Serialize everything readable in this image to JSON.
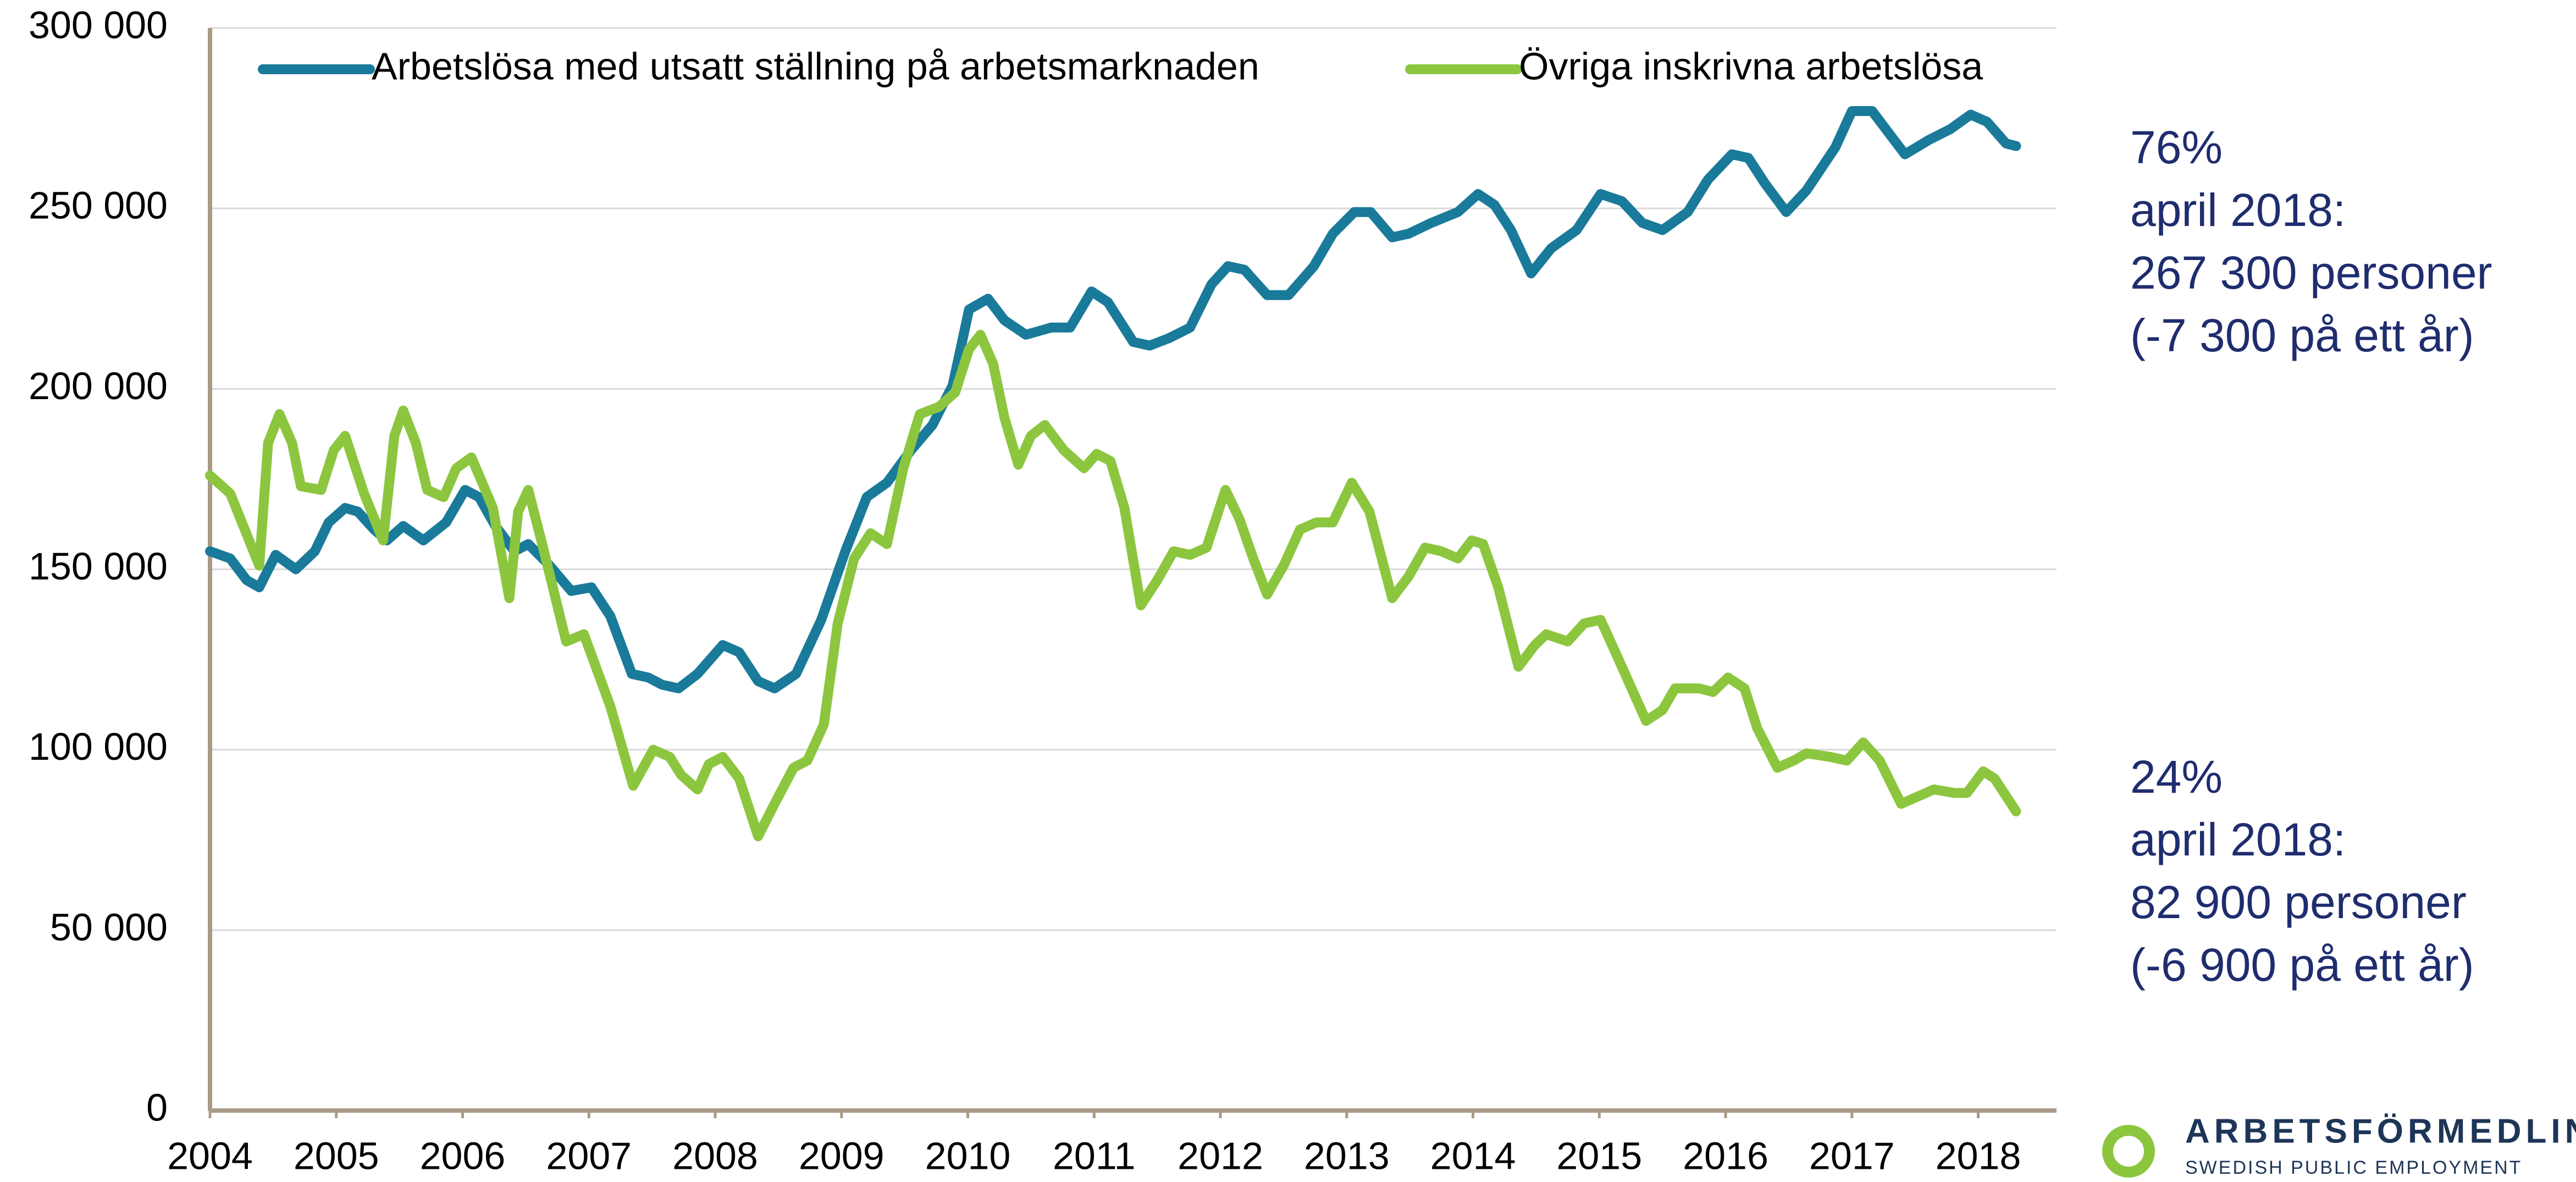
{
  "chart_data": {
    "type": "line",
    "xlim": [
      2004,
      2018.62
    ],
    "xticks": [
      2004,
      2005,
      2006,
      2007,
      2008,
      2009,
      2010,
      2011,
      2012,
      2013,
      2014,
      2015,
      2016,
      2017,
      2018
    ],
    "ylim": [
      0,
      300000
    ],
    "yticks": [
      0,
      {
        "value": 50000,
        "label": "50 000"
      },
      {
        "value": 100000,
        "label": "100 000"
      },
      {
        "value": 150000,
        "label": "150 000"
      },
      {
        "value": 200000,
        "label": "200 000"
      },
      {
        "value": 250000,
        "label": "250 000"
      },
      {
        "value": 300000,
        "label": "300 000"
      }
    ],
    "grid": true,
    "legend": "top",
    "series": [
      {
        "name": "Arbetslösa med utsatt ställning på arbetsmarknaden",
        "color": "#1a7a9a",
        "x": [
          2004.0,
          2004.16,
          2004.29,
          2004.39,
          2004.52,
          2004.68,
          2004.83,
          2004.94,
          2005.07,
          2005.17,
          2005.3,
          2005.4,
          2005.53,
          2005.69,
          2005.87,
          2006.02,
          2006.13,
          2006.26,
          2006.41,
          2006.52,
          2006.69,
          2006.86,
          2007.02,
          2007.17,
          2007.34,
          2007.47,
          2007.58,
          2007.71,
          2007.86,
          2008.06,
          2008.19,
          2008.34,
          2008.47,
          2008.64,
          2008.84,
          2009.03,
          2009.2,
          2009.36,
          2009.55,
          2009.72,
          2009.88,
          2010.01,
          2010.16,
          2010.29,
          2010.46,
          2010.66,
          2010.81,
          2010.98,
          2011.11,
          2011.31,
          2011.44,
          2011.59,
          2011.76,
          2011.93,
          2012.06,
          2012.19,
          2012.37,
          2012.54,
          2012.74,
          2012.89,
          2013.06,
          2013.19,
          2013.36,
          2013.49,
          2013.67,
          2013.88,
          2014.04,
          2014.17,
          2014.3,
          2014.46,
          2014.62,
          2014.82,
          2015.01,
          2015.18,
          2015.34,
          2015.5,
          2015.7,
          2015.86,
          2016.05,
          2016.18,
          2016.31,
          2016.48,
          2016.64,
          2016.87,
          2017.0,
          2017.16,
          2017.29,
          2017.42,
          2017.61,
          2017.78,
          2017.94,
          2018.07,
          2018.22,
          2018.3
        ],
        "values": [
          155000,
          153000,
          147000,
          145000,
          154000,
          150000,
          155000,
          163000,
          167000,
          166000,
          161000,
          158000,
          162000,
          158000,
          163000,
          172000,
          170000,
          162000,
          155000,
          157000,
          151000,
          144000,
          145000,
          137000,
          121000,
          120000,
          118000,
          117000,
          121000,
          129000,
          127000,
          119000,
          117000,
          121000,
          136000,
          155000,
          170000,
          174000,
          183000,
          190000,
          201000,
          222000,
          225000,
          219000,
          215000,
          217000,
          217000,
          227000,
          224000,
          213000,
          212000,
          214000,
          217000,
          229000,
          234000,
          233000,
          226000,
          226000,
          234000,
          243000,
          249000,
          249000,
          242000,
          243000,
          246000,
          249000,
          254000,
          251000,
          244000,
          232000,
          239000,
          244000,
          254000,
          252000,
          246000,
          244000,
          249000,
          258000,
          265000,
          264000,
          257000,
          249000,
          255000,
          267000,
          277000,
          277000,
          271000,
          265000,
          269000,
          272000,
          276000,
          274000,
          268000,
          267300
        ]
      },
      {
        "name": "Övriga inskrivna arbetslösa",
        "color": "#8cc63f",
        "x": [
          2004.0,
          2004.16,
          2004.31,
          2004.39,
          2004.46,
          2004.55,
          2004.65,
          2004.72,
          2004.88,
          2004.98,
          2005.07,
          2005.22,
          2005.37,
          2005.46,
          2005.53,
          2005.63,
          2005.72,
          2005.85,
          2005.95,
          2006.07,
          2006.24,
          2006.37,
          2006.44,
          2006.52,
          2006.63,
          2006.82,
          2006.96,
          2007.17,
          2007.35,
          2007.51,
          2007.64,
          2007.73,
          2007.86,
          2007.95,
          2008.06,
          2008.19,
          2008.34,
          2008.47,
          2008.62,
          2008.73,
          2008.86,
          2008.97,
          2009.1,
          2009.23,
          2009.36,
          2009.49,
          2009.62,
          2009.77,
          2009.9,
          2010.01,
          2010.1,
          2010.2,
          2010.29,
          2010.4,
          2010.5,
          2010.61,
          2010.76,
          2010.92,
          2011.02,
          2011.13,
          2011.24,
          2011.37,
          2011.5,
          2011.63,
          2011.76,
          2011.89,
          2012.04,
          2012.15,
          2012.26,
          2012.37,
          2012.5,
          2012.63,
          2012.76,
          2012.89,
          2013.04,
          2013.18,
          2013.36,
          2013.49,
          2013.62,
          2013.75,
          2013.88,
          2013.99,
          2014.08,
          2014.2,
          2014.36,
          2014.49,
          2014.58,
          2014.75,
          2014.88,
          2015.01,
          2015.14,
          2015.37,
          2015.5,
          2015.6,
          2015.79,
          2015.9,
          2016.02,
          2016.15,
          2016.25,
          2016.41,
          2016.54,
          2016.64,
          2016.83,
          2016.96,
          2017.09,
          2017.22,
          2017.39,
          2017.52,
          2017.65,
          2017.81,
          2017.91,
          2018.04,
          2018.13,
          2018.3
        ],
        "values": [
          176000,
          171000,
          158000,
          151000,
          185000,
          193000,
          185000,
          173000,
          172000,
          183000,
          187000,
          171000,
          158000,
          187000,
          194000,
          185000,
          172000,
          170000,
          178000,
          181000,
          167000,
          142000,
          166000,
          172000,
          157000,
          130000,
          132000,
          112000,
          90000,
          100000,
          98000,
          93000,
          89000,
          96000,
          98000,
          92000,
          76000,
          85000,
          95000,
          97000,
          107000,
          135000,
          153000,
          160000,
          157000,
          178000,
          193000,
          195000,
          199000,
          211000,
          215000,
          207000,
          192000,
          179000,
          187000,
          190000,
          183000,
          178000,
          182000,
          180000,
          167000,
          140000,
          147000,
          155000,
          154000,
          156000,
          172000,
          164000,
          153000,
          143000,
          151000,
          161000,
          163000,
          163000,
          174000,
          166000,
          142000,
          148000,
          156000,
          155000,
          153000,
          158000,
          157000,
          145000,
          123000,
          129000,
          132000,
          130000,
          135000,
          136000,
          126000,
          108000,
          111000,
          117000,
          117000,
          116000,
          120000,
          117000,
          106000,
          95000,
          97000,
          99000,
          98000,
          97000,
          102000,
          97000,
          85000,
          87000,
          89000,
          88000,
          88000,
          94000,
          92000,
          82900
        ]
      }
    ],
    "annotations": [
      [
        "76%",
        "april 2018:",
        "267 300 personer",
        "(-7 300 på ett år)"
      ],
      [
        "24%",
        "april 2018:",
        "82 900 personer",
        "(-6 900 på ett år)"
      ]
    ]
  },
  "logo": {
    "name": "ARBETSFÖRMEDLIN",
    "subtitle": "SWEDISH PUBLIC EMPLOYMENT"
  }
}
